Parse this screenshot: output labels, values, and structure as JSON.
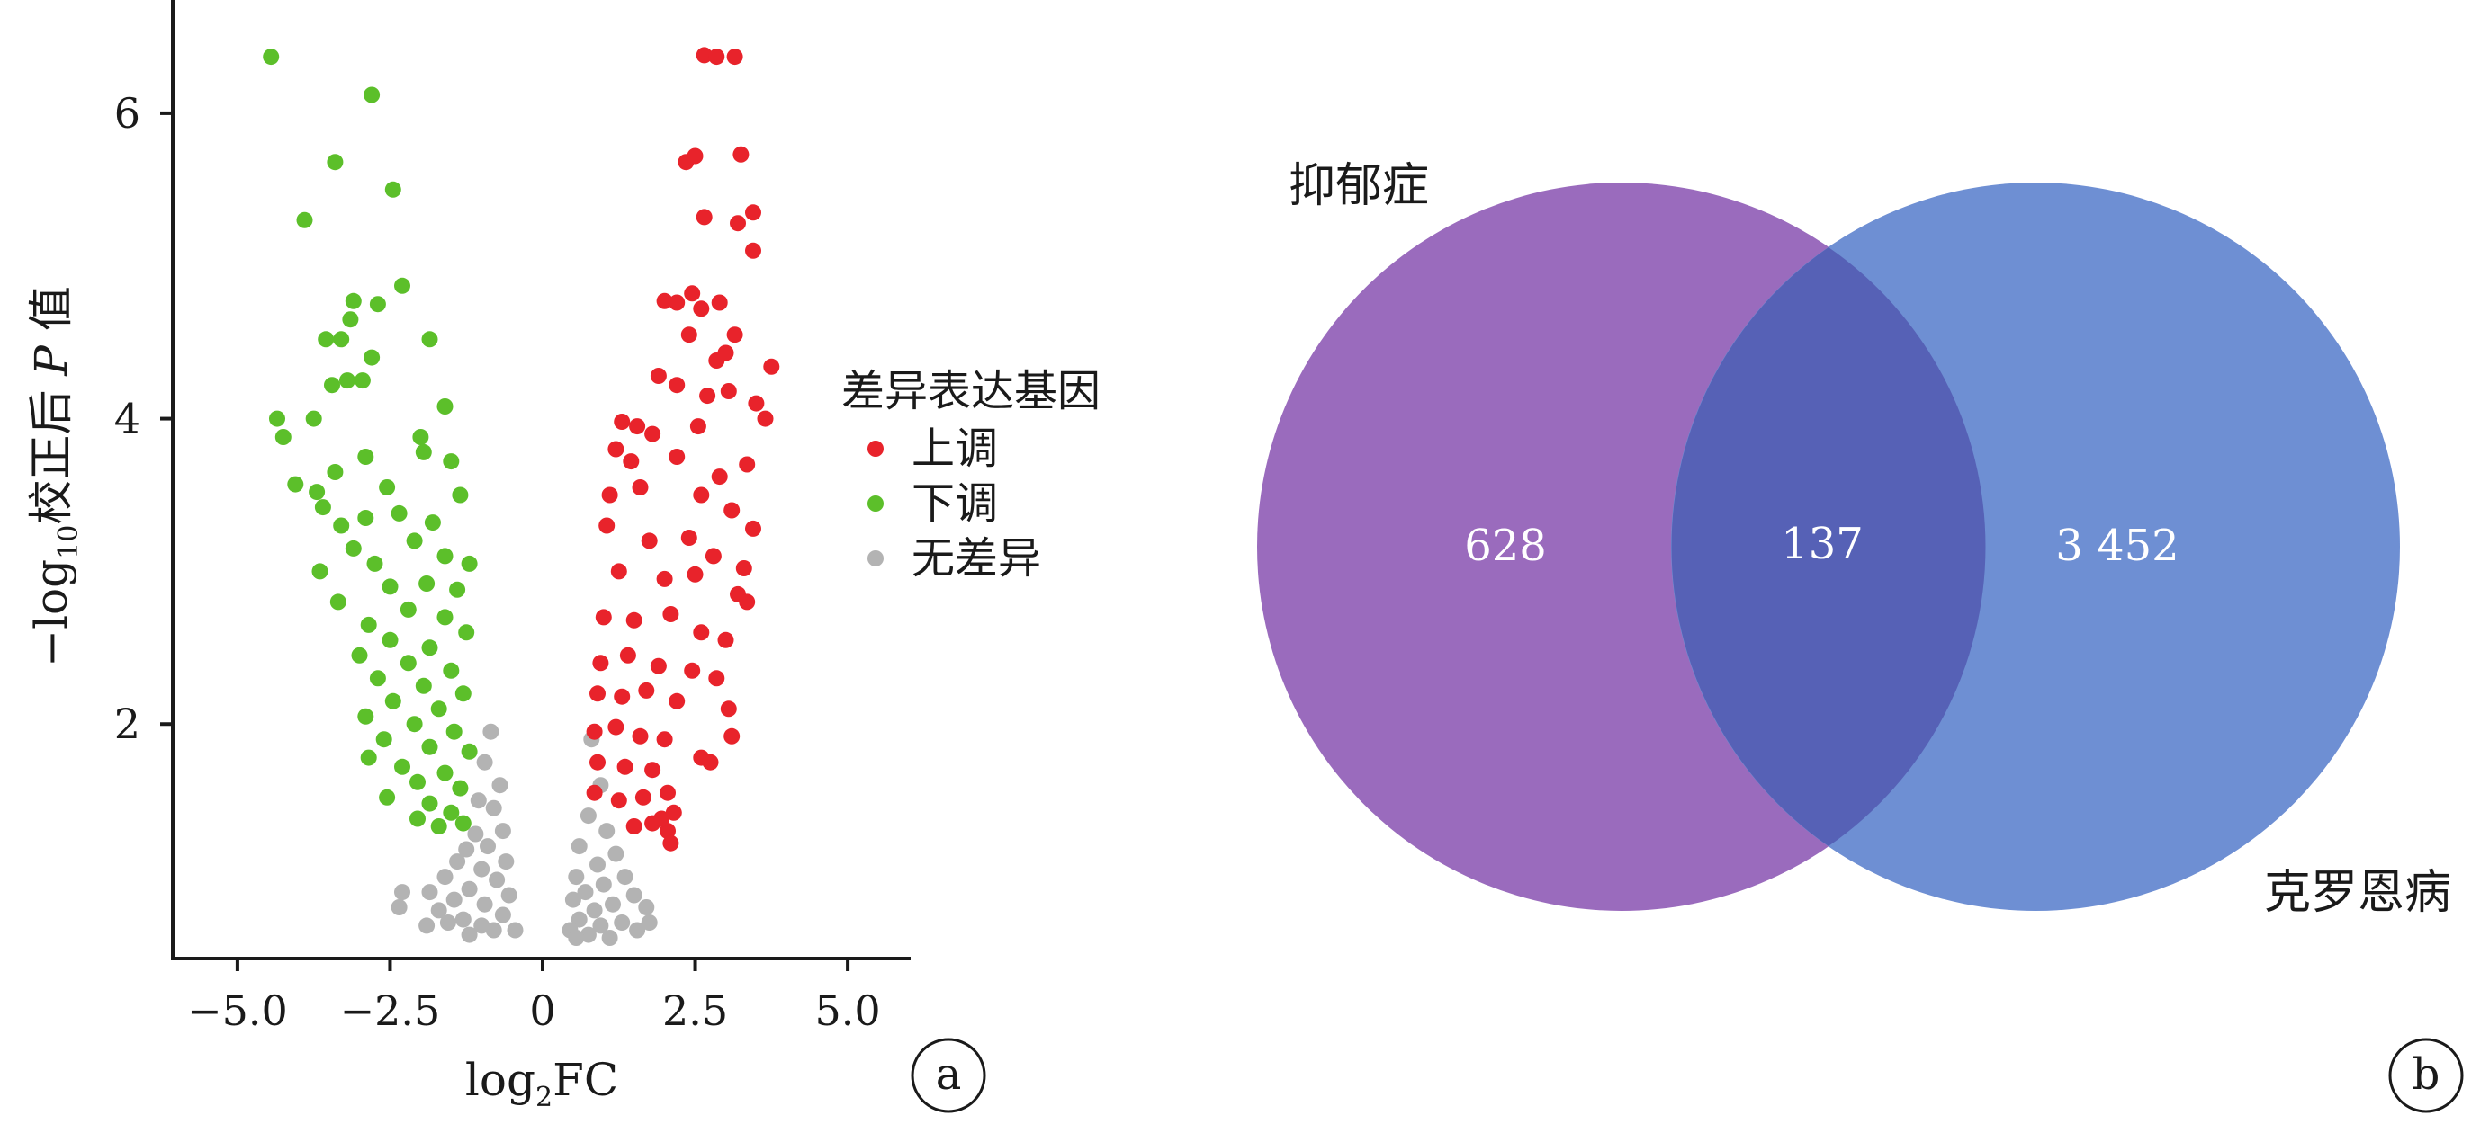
{
  "chart_data": [
    {
      "panel": "a",
      "type": "scatter",
      "xlabel_main": "log",
      "xlabel_sub": "2",
      "xlabel_tail": "FC",
      "ylabel_prefix": "−log",
      "ylabel_sub": "10",
      "ylabel_mid": "校正后 ",
      "ylabel_italic": "P",
      "ylabel_tail": " 值",
      "xlim": [
        -5.5,
        5.5
      ],
      "ylim": [
        0.5,
        6.6
      ],
      "xticks": [
        -5.0,
        -2.5,
        0,
        2.5,
        5.0
      ],
      "xtick_labels": [
        "−5.0",
        "−2.5",
        "0",
        "2.5",
        "5.0"
      ],
      "yticks": [
        2,
        4,
        6
      ],
      "ytick_labels": [
        "2",
        "4",
        "6"
      ],
      "legend": {
        "title": "差异表达基因",
        "position": "right",
        "entries": [
          {
            "label": "上调",
            "color": "#e8232b"
          },
          {
            "label": "下调",
            "color": "#5cbf2a"
          },
          {
            "label": "无差异",
            "color": "#b3b3b3"
          }
        ]
      },
      "series": [
        {
          "name": "上调",
          "color": "#e8232b",
          "points": [
            [
              2.65,
              6.38
            ],
            [
              2.85,
              6.37
            ],
            [
              3.15,
              6.37
            ],
            [
              2.35,
              5.68
            ],
            [
              2.5,
              5.72
            ],
            [
              3.25,
              5.73
            ],
            [
              2.65,
              5.32
            ],
            [
              3.2,
              5.28
            ],
            [
              3.45,
              5.35
            ],
            [
              3.45,
              5.1
            ],
            [
              2.0,
              4.77
            ],
            [
              2.2,
              4.76
            ],
            [
              2.45,
              4.82
            ],
            [
              2.6,
              4.72
            ],
            [
              2.9,
              4.76
            ],
            [
              2.4,
              4.55
            ],
            [
              3.15,
              4.55
            ],
            [
              2.85,
              4.38
            ],
            [
              3.0,
              4.43
            ],
            [
              3.75,
              4.34
            ],
            [
              1.9,
              4.28
            ],
            [
              2.2,
              4.22
            ],
            [
              2.7,
              4.15
            ],
            [
              3.05,
              4.18
            ],
            [
              3.5,
              4.1
            ],
            [
              1.3,
              3.98
            ],
            [
              1.55,
              3.95
            ],
            [
              1.8,
              3.9
            ],
            [
              2.55,
              3.95
            ],
            [
              3.65,
              4.0
            ],
            [
              1.2,
              3.8
            ],
            [
              1.45,
              3.72
            ],
            [
              2.2,
              3.75
            ],
            [
              2.9,
              3.62
            ],
            [
              3.35,
              3.7
            ],
            [
              1.1,
              3.5
            ],
            [
              1.6,
              3.55
            ],
            [
              2.6,
              3.5
            ],
            [
              3.1,
              3.4
            ],
            [
              3.45,
              3.28
            ],
            [
              1.05,
              3.3
            ],
            [
              1.75,
              3.2
            ],
            [
              2.4,
              3.22
            ],
            [
              2.8,
              3.1
            ],
            [
              3.3,
              3.02
            ],
            [
              1.25,
              3.0
            ],
            [
              2.0,
              2.95
            ],
            [
              2.5,
              2.98
            ],
            [
              3.2,
              2.85
            ],
            [
              3.35,
              2.8
            ],
            [
              1.0,
              2.7
            ],
            [
              1.5,
              2.68
            ],
            [
              2.1,
              2.72
            ],
            [
              2.6,
              2.6
            ],
            [
              3.0,
              2.55
            ],
            [
              0.95,
              2.4
            ],
            [
              1.4,
              2.45
            ],
            [
              1.9,
              2.38
            ],
            [
              2.45,
              2.35
            ],
            [
              2.85,
              2.3
            ],
            [
              0.9,
              2.2
            ],
            [
              1.3,
              2.18
            ],
            [
              1.7,
              2.22
            ],
            [
              2.2,
              2.15
            ],
            [
              3.05,
              2.1
            ],
            [
              0.85,
              1.95
            ],
            [
              1.2,
              1.98
            ],
            [
              1.6,
              1.92
            ],
            [
              2.0,
              1.9
            ],
            [
              3.1,
              1.92
            ],
            [
              0.9,
              1.75
            ],
            [
              1.35,
              1.72
            ],
            [
              1.8,
              1.7
            ],
            [
              2.6,
              1.78
            ],
            [
              2.75,
              1.75
            ],
            [
              0.85,
              1.55
            ],
            [
              1.25,
              1.5
            ],
            [
              1.65,
              1.52
            ],
            [
              2.05,
              1.55
            ],
            [
              2.15,
              1.42
            ],
            [
              1.5,
              1.33
            ],
            [
              1.8,
              1.35
            ],
            [
              2.05,
              1.3
            ],
            [
              2.1,
              1.22
            ],
            [
              1.95,
              1.38
            ]
          ]
        },
        {
          "name": "下调",
          "color": "#5cbf2a",
          "points": [
            [
              -4.45,
              6.37
            ],
            [
              -2.8,
              6.12
            ],
            [
              -3.4,
              5.68
            ],
            [
              -2.45,
              5.5
            ],
            [
              -3.9,
              5.3
            ],
            [
              -2.3,
              4.87
            ],
            [
              -3.1,
              4.77
            ],
            [
              -2.7,
              4.75
            ],
            [
              -3.15,
              4.65
            ],
            [
              -3.3,
              4.52
            ],
            [
              -1.85,
              4.52
            ],
            [
              -3.55,
              4.52
            ],
            [
              -2.8,
              4.4
            ],
            [
              -3.45,
              4.22
            ],
            [
              -3.2,
              4.25
            ],
            [
              -2.95,
              4.25
            ],
            [
              -1.6,
              4.08
            ],
            [
              -4.35,
              4.0
            ],
            [
              -2.0,
              3.88
            ],
            [
              -4.25,
              3.88
            ],
            [
              -3.75,
              4.0
            ],
            [
              -1.95,
              3.78
            ],
            [
              -2.9,
              3.75
            ],
            [
              -1.5,
              3.72
            ],
            [
              -3.4,
              3.65
            ],
            [
              -4.05,
              3.57
            ],
            [
              -3.7,
              3.52
            ],
            [
              -2.55,
              3.55
            ],
            [
              -1.35,
              3.5
            ],
            [
              -3.6,
              3.42
            ],
            [
              -2.9,
              3.35
            ],
            [
              -2.35,
              3.38
            ],
            [
              -1.8,
              3.32
            ],
            [
              -3.3,
              3.3
            ],
            [
              -2.1,
              3.2
            ],
            [
              -3.1,
              3.15
            ],
            [
              -1.6,
              3.1
            ],
            [
              -2.75,
              3.05
            ],
            [
              -1.2,
              3.05
            ],
            [
              -3.65,
              3.0
            ],
            [
              -2.5,
              2.9
            ],
            [
              -1.9,
              2.92
            ],
            [
              -1.4,
              2.88
            ],
            [
              -3.35,
              2.8
            ],
            [
              -2.2,
              2.75
            ],
            [
              -1.6,
              2.7
            ],
            [
              -2.85,
              2.65
            ],
            [
              -1.25,
              2.6
            ],
            [
              -2.5,
              2.55
            ],
            [
              -1.85,
              2.5
            ],
            [
              -3.0,
              2.45
            ],
            [
              -2.2,
              2.4
            ],
            [
              -1.5,
              2.35
            ],
            [
              -2.7,
              2.3
            ],
            [
              -1.95,
              2.25
            ],
            [
              -1.3,
              2.2
            ],
            [
              -2.45,
              2.15
            ],
            [
              -1.7,
              2.1
            ],
            [
              -2.9,
              2.05
            ],
            [
              -2.1,
              2.0
            ],
            [
              -1.45,
              1.95
            ],
            [
              -2.6,
              1.9
            ],
            [
              -1.85,
              1.85
            ],
            [
              -1.2,
              1.82
            ],
            [
              -2.85,
              1.78
            ],
            [
              -2.3,
              1.72
            ],
            [
              -1.6,
              1.68
            ],
            [
              -2.05,
              1.62
            ],
            [
              -1.35,
              1.58
            ],
            [
              -2.55,
              1.52
            ],
            [
              -1.85,
              1.48
            ],
            [
              -1.5,
              1.42
            ],
            [
              -2.05,
              1.38
            ],
            [
              -1.3,
              1.35
            ],
            [
              -1.7,
              1.33
            ]
          ]
        },
        {
          "name": "无差异",
          "color": "#b3b3b3",
          "points": [
            [
              -0.85,
              1.95
            ],
            [
              -0.95,
              1.75
            ],
            [
              -0.7,
              1.6
            ],
            [
              -1.05,
              1.5
            ],
            [
              -0.8,
              1.45
            ],
            [
              -0.65,
              1.3
            ],
            [
              -1.1,
              1.28
            ],
            [
              -0.9,
              1.2
            ],
            [
              -1.25,
              1.18
            ],
            [
              -0.6,
              1.1
            ],
            [
              -1.4,
              1.1
            ],
            [
              -1.0,
              1.05
            ],
            [
              -1.6,
              1.0
            ],
            [
              -0.75,
              0.98
            ],
            [
              -1.2,
              0.92
            ],
            [
              -1.85,
              0.9
            ],
            [
              -0.55,
              0.88
            ],
            [
              -1.45,
              0.85
            ],
            [
              -0.95,
              0.82
            ],
            [
              -1.7,
              0.78
            ],
            [
              -2.3,
              0.9
            ],
            [
              -2.35,
              0.8
            ],
            [
              -0.65,
              0.75
            ],
            [
              -1.3,
              0.72
            ],
            [
              -1.55,
              0.7
            ],
            [
              -1.0,
              0.68
            ],
            [
              -0.8,
              0.65
            ],
            [
              -1.2,
              0.62
            ],
            [
              -0.45,
              0.65
            ],
            [
              -1.9,
              0.68
            ],
            [
              0.8,
              1.9
            ],
            [
              0.95,
              1.6
            ],
            [
              0.75,
              1.4
            ],
            [
              1.05,
              1.3
            ],
            [
              0.6,
              1.2
            ],
            [
              1.2,
              1.15
            ],
            [
              0.9,
              1.08
            ],
            [
              0.55,
              1.0
            ],
            [
              1.35,
              1.0
            ],
            [
              1.0,
              0.95
            ],
            [
              0.7,
              0.9
            ],
            [
              1.5,
              0.88
            ],
            [
              0.5,
              0.85
            ],
            [
              1.15,
              0.82
            ],
            [
              0.85,
              0.78
            ],
            [
              1.7,
              0.8
            ],
            [
              0.6,
              0.72
            ],
            [
              1.3,
              0.7
            ],
            [
              0.95,
              0.68
            ],
            [
              0.45,
              0.65
            ],
            [
              1.55,
              0.65
            ],
            [
              0.75,
              0.62
            ],
            [
              1.1,
              0.6
            ],
            [
              0.55,
              0.6
            ],
            [
              1.75,
              0.7
            ]
          ]
        }
      ]
    },
    {
      "panel": "b",
      "type": "venn",
      "sets": [
        {
          "label": "抑郁症",
          "only": "628",
          "color": "#9a6bbd"
        },
        {
          "label": "克罗恩病",
          "only": "3 452",
          "color": "#6e8fd3"
        }
      ],
      "intersection": "137",
      "intersection_color": "#5661b6"
    }
  ],
  "panels": {
    "a": "a",
    "b": "b"
  }
}
